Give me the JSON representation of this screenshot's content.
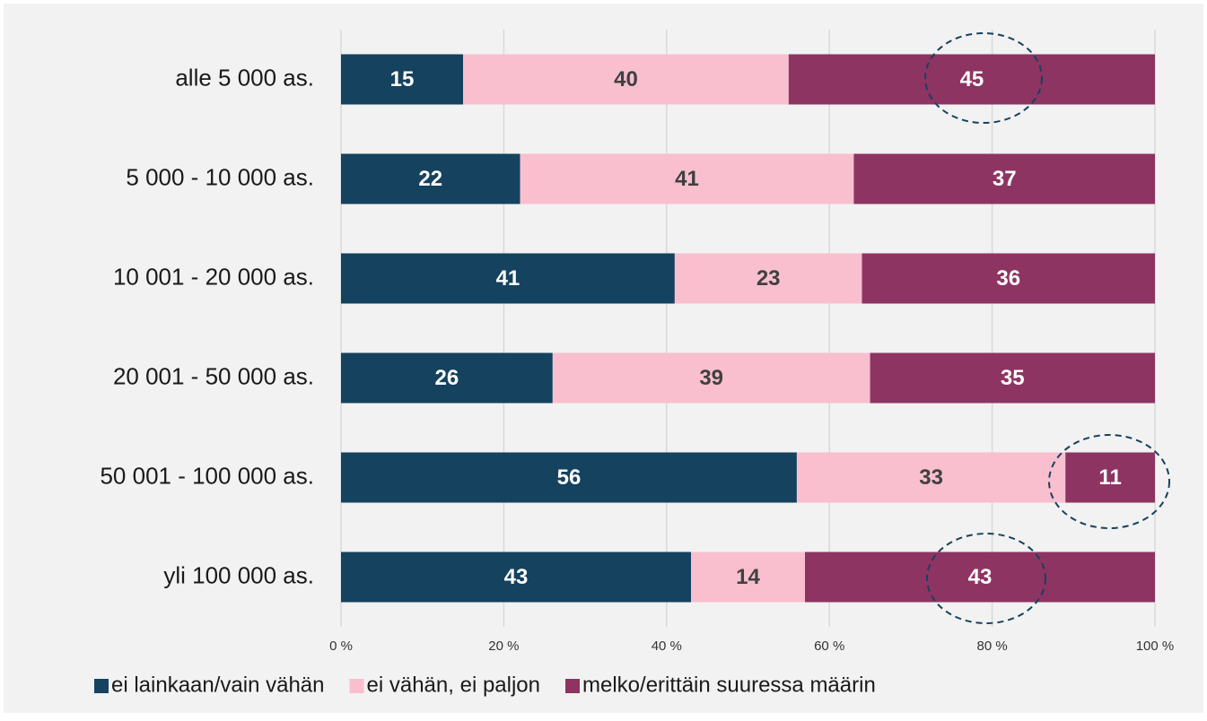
{
  "chart_data": {
    "type": "stacked_barh",
    "categories": [
      "alle 5 000 as.",
      "5 000 - 10 000 as.",
      "10 001 - 20 000 as.",
      "20 001 - 50 000 as.",
      "50 001 - 100 000 as.",
      "yli 100 000 as."
    ],
    "series": [
      {
        "name": "ei lainkaan/vain vähän",
        "color": "#14425f",
        "values": [
          15,
          22,
          41,
          26,
          56,
          43
        ]
      },
      {
        "name": "ei vähän, ei paljon",
        "color": "#f9bfcf",
        "values": [
          40,
          41,
          23,
          39,
          33,
          14
        ]
      },
      {
        "name": "melko/erittäin suuressa määrin",
        "color": "#8e3462",
        "values": [
          45,
          37,
          36,
          35,
          11,
          43
        ]
      }
    ],
    "xlim": [
      0,
      100
    ],
    "xticks": [
      {
        "value": 0,
        "label": "0 %"
      },
      {
        "value": 20,
        "label": "20 %"
      },
      {
        "value": 40,
        "label": "40 %"
      },
      {
        "value": 60,
        "label": "60 %"
      },
      {
        "value": 80,
        "label": "80 %"
      },
      {
        "value": 100,
        "label": "100 %"
      }
    ],
    "grid": true,
    "legend": "bottom"
  }
}
